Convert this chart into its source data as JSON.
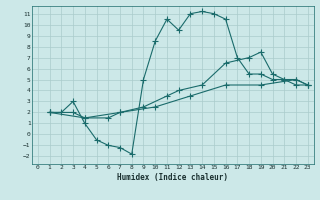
{
  "xlabel": "Humidex (Indice chaleur)",
  "bg_color": "#cce8e8",
  "grid_color": "#aacccc",
  "line_color": "#1a6b6b",
  "xlim": [
    -0.5,
    23.5
  ],
  "ylim": [
    -2.7,
    11.7
  ],
  "xticks": [
    0,
    1,
    2,
    3,
    4,
    5,
    6,
    7,
    8,
    9,
    10,
    11,
    12,
    13,
    14,
    15,
    16,
    17,
    18,
    19,
    20,
    21,
    22,
    23
  ],
  "yticks": [
    -2,
    -1,
    0,
    1,
    2,
    3,
    4,
    5,
    6,
    7,
    8,
    9,
    10,
    11
  ],
  "line1_x": [
    1,
    2,
    3,
    4,
    5,
    6,
    7,
    8,
    9,
    10,
    11,
    12,
    13,
    14,
    15,
    16,
    17,
    18,
    19,
    20,
    21,
    22,
    23
  ],
  "line1_y": [
    2,
    2,
    3,
    1,
    -0.5,
    -1,
    -1.2,
    -1.8,
    5,
    8.5,
    10.5,
    9.5,
    11,
    11.2,
    11,
    10.5,
    7,
    5.5,
    5.5,
    5,
    5,
    4.5,
    4.5
  ],
  "line2_x": [
    1,
    3,
    4,
    6,
    7,
    9,
    11,
    12,
    14,
    16,
    18,
    19,
    20,
    21,
    22,
    23
  ],
  "line2_y": [
    2,
    2.0,
    1.5,
    1.5,
    2,
    2.5,
    3.5,
    4,
    4.5,
    6.5,
    7,
    7.5,
    5.5,
    5,
    5,
    4.5
  ],
  "line3_x": [
    1,
    4,
    7,
    10,
    13,
    16,
    19,
    22,
    23
  ],
  "line3_y": [
    2,
    1.5,
    2,
    2.5,
    3.5,
    4.5,
    4.5,
    5,
    4.5
  ]
}
